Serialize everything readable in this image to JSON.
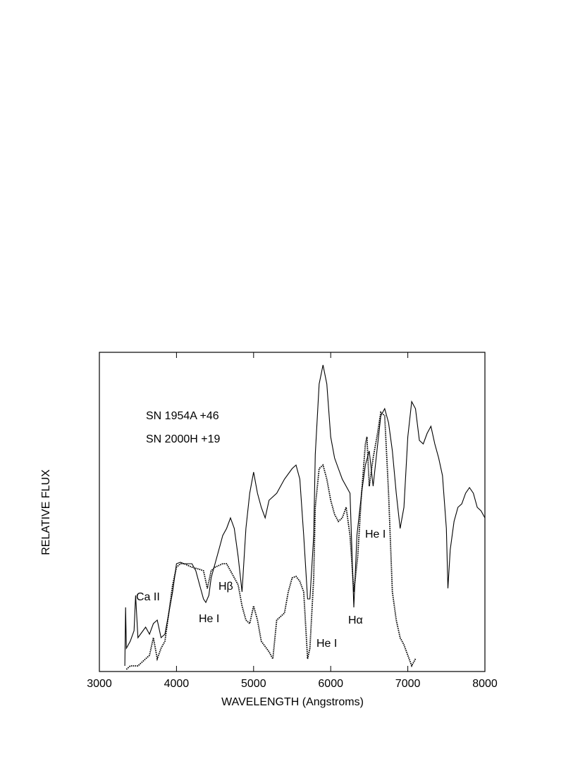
{
  "chart_data": {
    "type": "line",
    "xlabel": "WAVELENGTH  (Angstroms)",
    "ylabel": "RELATIVE  FLUX",
    "xlim": [
      3000,
      8000
    ],
    "xticks": [
      3000,
      4000,
      5000,
      6000,
      7000,
      8000
    ],
    "ylim": [
      0,
      45.3
    ],
    "grid": false,
    "series": [
      {
        "name": "SN 1954A  +46",
        "color": "#000000",
        "style": "solid",
        "x": [
          3330,
          3340,
          3350,
          3400,
          3450,
          3470,
          3500,
          3600,
          3650,
          3700,
          3750,
          3800,
          3850,
          3900,
          3950,
          4000,
          4050,
          4100,
          4200,
          4250,
          4300,
          4350,
          4380,
          4420,
          4450,
          4500,
          4550,
          4600,
          4650,
          4700,
          4750,
          4800,
          4850,
          4900,
          4950,
          5000,
          5050,
          5100,
          5150,
          5200,
          5300,
          5400,
          5500,
          5550,
          5600,
          5650,
          5700,
          5730,
          5780,
          5800,
          5850,
          5900,
          5950,
          6000,
          6050,
          6100,
          6150,
          6200,
          6250,
          6300,
          6340,
          6400,
          6450,
          6500,
          6550,
          6600,
          6650,
          6700,
          6750,
          6800,
          6850,
          6900,
          6950,
          7000,
          7050,
          7100,
          7150,
          7200,
          7250,
          7300,
          7350,
          7400,
          7450,
          7500,
          7520,
          7550,
          7600,
          7650,
          7700,
          7750,
          7800,
          7850,
          7900,
          7950,
          8000
        ],
        "values": [
          0.8,
          9.1,
          3.3,
          4.3,
          5.8,
          10.8,
          4.8,
          6.3,
          5.3,
          6.8,
          7.3,
          4.8,
          5.3,
          8.3,
          11.3,
          15.3,
          15.5,
          15.3,
          15.3,
          14.3,
          12.3,
          10.3,
          9.8,
          10.8,
          13.3,
          15.3,
          17.3,
          19.3,
          20.3,
          21.8,
          20.3,
          16.3,
          11.3,
          20.3,
          25.3,
          28.3,
          25.3,
          23.3,
          21.8,
          24.3,
          25.3,
          27.3,
          28.8,
          29.3,
          27.3,
          19.3,
          10.3,
          10.3,
          19.3,
          30.8,
          40.8,
          43.5,
          40.8,
          33.3,
          30.3,
          28.8,
          27.3,
          26.3,
          25.3,
          9.1,
          19.3,
          25.3,
          29.3,
          31.3,
          26.3,
          31.3,
          36.3,
          37.3,
          35.3,
          31.3,
          25.3,
          20.3,
          23.3,
          33.3,
          38.3,
          37.3,
          32.8,
          32.3,
          33.8,
          34.8,
          32.3,
          30.3,
          27.8,
          20.3,
          11.8,
          17.3,
          21.3,
          23.3,
          23.8,
          25.3,
          26.1,
          25.3,
          23.3,
          22.8,
          21.8
        ]
      },
      {
        "name": "SN 2000H  +19",
        "color": "#000000",
        "style": "dotted",
        "x": [
          3350,
          3400,
          3500,
          3550,
          3600,
          3650,
          3700,
          3750,
          3800,
          3850,
          3900,
          3950,
          4000,
          4050,
          4100,
          4200,
          4300,
          4350,
          4400,
          4450,
          4500,
          4600,
          4650,
          4700,
          4750,
          4800,
          4850,
          4900,
          4950,
          5000,
          5050,
          5100,
          5200,
          5250,
          5300,
          5400,
          5450,
          5500,
          5550,
          5600,
          5650,
          5700,
          5730,
          5780,
          5800,
          5850,
          5900,
          5950,
          6000,
          6050,
          6100,
          6150,
          6200,
          6250,
          6300,
          6350,
          6400,
          6450,
          6470,
          6500,
          6550,
          6600,
          6650,
          6700,
          6750,
          6800,
          6850,
          6900,
          6950,
          7000,
          7050,
          7100
        ],
        "values": [
          0.3,
          0.8,
          0.8,
          1.3,
          1.8,
          2.3,
          4.8,
          1.8,
          3.3,
          4.3,
          8.3,
          12.3,
          14.8,
          15.3,
          15.3,
          14.8,
          14.5,
          14.3,
          11.8,
          14.3,
          14.8,
          15.3,
          15.3,
          14.3,
          13.3,
          12.3,
          9.3,
          7.3,
          6.8,
          9.3,
          7.3,
          4.3,
          2.8,
          1.8,
          7.3,
          8.3,
          11.3,
          13.3,
          13.5,
          12.8,
          11.3,
          1.8,
          3.3,
          13.3,
          23.3,
          28.8,
          29.3,
          27.3,
          24.3,
          22.3,
          21.3,
          21.8,
          23.3,
          19.3,
          11.3,
          16.3,
          25.3,
          32.3,
          33.3,
          26.3,
          30.3,
          33.3,
          36.8,
          36.3,
          25.3,
          11.3,
          7.3,
          4.8,
          3.8,
          2.3,
          0.8,
          1.8
        ]
      }
    ],
    "annotations": [
      "Ca II",
      "He I",
      "Hβ",
      "He I",
      "Hα",
      "He I"
    ]
  }
}
